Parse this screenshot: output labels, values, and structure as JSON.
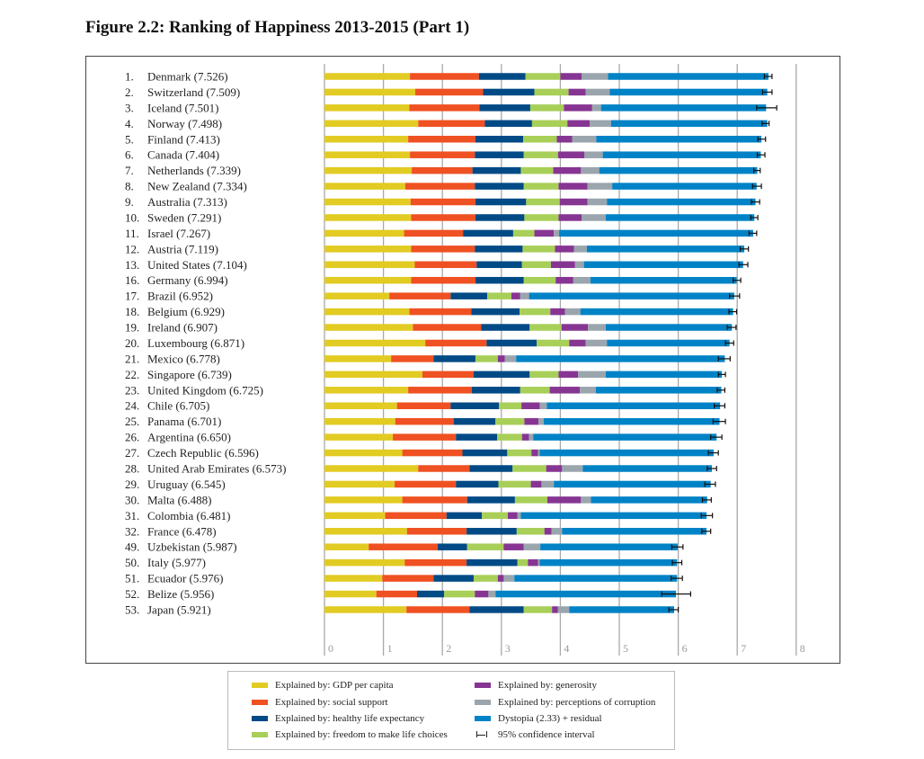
{
  "title": "Figure 2.2: Ranking of Happiness 2013-2015 (Part 1)",
  "chart_data": {
    "type": "bar",
    "orientation": "horizontal",
    "stacked": true,
    "title": "Figure 2.2: Ranking of Happiness 2013-2015 (Part 1)",
    "xlim": [
      0,
      8
    ],
    "xticks": [
      "0",
      "1",
      "2",
      "3",
      "4",
      "5",
      "6",
      "7",
      "8"
    ],
    "grid": true,
    "legend_position": "bottom",
    "series": [
      {
        "name": "Explained by: GDP per capita",
        "color": "#e2cb22"
      },
      {
        "name": "Explained by: social support",
        "color": "#ef5122"
      },
      {
        "name": "Explained by: healthy life expectancy",
        "color": "#004a86"
      },
      {
        "name": "Explained by: freedom to make life choices",
        "color": "#a8cf58"
      },
      {
        "name": "Explained by: generosity",
        "color": "#873593"
      },
      {
        "name": "Explained by: perceptions of corruption",
        "color": "#9ba5ad"
      },
      {
        "name": "Dystopia (2.33) + residual",
        "color": "#0083c6"
      }
    ],
    "ci_label": "95% confidence interval",
    "rows": [
      {
        "rank": "1.",
        "country": "Denmark",
        "score": "7.526",
        "values": [
          1.45,
          1.17,
          0.79,
          0.59,
          0.36,
          0.45,
          2.72
        ],
        "ci": [
          7.46,
          7.59
        ]
      },
      {
        "rank": "2.",
        "country": "Switzerland",
        "score": "7.509",
        "values": [
          1.54,
          1.15,
          0.87,
          0.58,
          0.29,
          0.41,
          2.67
        ],
        "ci": [
          7.43,
          7.59
        ]
      },
      {
        "rank": "3.",
        "country": "Iceland",
        "score": "7.501",
        "values": [
          1.44,
          1.19,
          0.86,
          0.57,
          0.48,
          0.15,
          2.8
        ],
        "ci": [
          7.33,
          7.67
        ]
      },
      {
        "rank": "4.",
        "country": "Norway",
        "score": "7.498",
        "values": [
          1.59,
          1.13,
          0.8,
          0.6,
          0.38,
          0.36,
          2.65
        ],
        "ci": [
          7.42,
          7.54
        ]
      },
      {
        "rank": "5.",
        "country": "Finland",
        "score": "7.413",
        "values": [
          1.42,
          1.14,
          0.81,
          0.57,
          0.26,
          0.41,
          2.8
        ],
        "ci": [
          7.35,
          7.48
        ]
      },
      {
        "rank": "6.",
        "country": "Canada",
        "score": "7.404",
        "values": [
          1.45,
          1.1,
          0.83,
          0.58,
          0.45,
          0.31,
          2.68
        ],
        "ci": [
          7.34,
          7.47
        ]
      },
      {
        "rank": "7.",
        "country": "Netherlands",
        "score": "7.339",
        "values": [
          1.48,
          1.03,
          0.82,
          0.55,
          0.47,
          0.31,
          2.68
        ],
        "ci": [
          7.28,
          7.39
        ]
      },
      {
        "rank": "8.",
        "country": "New Zealand",
        "score": "7.334",
        "values": [
          1.37,
          1.18,
          0.83,
          0.59,
          0.49,
          0.42,
          2.45
        ],
        "ci": [
          7.26,
          7.41
        ]
      },
      {
        "rank": "9.",
        "country": "Australia",
        "score": "7.313",
        "values": [
          1.46,
          1.1,
          0.86,
          0.57,
          0.47,
          0.33,
          2.52
        ],
        "ci": [
          7.24,
          7.38
        ]
      },
      {
        "rank": "10.",
        "country": "Sweden",
        "score": "7.291",
        "values": [
          1.47,
          1.09,
          0.83,
          0.58,
          0.39,
          0.41,
          2.52
        ],
        "ci": [
          7.23,
          7.35
        ]
      },
      {
        "rank": "11.",
        "country": "Israel",
        "score": "7.267",
        "values": [
          1.35,
          1.0,
          0.85,
          0.36,
          0.33,
          0.09,
          3.29
        ],
        "ci": [
          7.2,
          7.33
        ]
      },
      {
        "rank": "12.",
        "country": "Austria",
        "score": "7.119",
        "values": [
          1.47,
          1.08,
          0.81,
          0.55,
          0.32,
          0.22,
          2.67
        ],
        "ci": [
          7.05,
          7.19
        ]
      },
      {
        "rank": "13.",
        "country": "United States",
        "score": "7.104",
        "values": [
          1.53,
          1.05,
          0.77,
          0.49,
          0.41,
          0.15,
          2.7
        ],
        "ci": [
          7.03,
          7.18
        ]
      },
      {
        "rank": "16.",
        "country": "Germany",
        "score": "6.994",
        "values": [
          1.47,
          1.09,
          0.82,
          0.54,
          0.3,
          0.29,
          2.48
        ],
        "ci": [
          6.93,
          7.06
        ]
      },
      {
        "rank": "17.",
        "country": "Brazil",
        "score": "6.952",
        "values": [
          1.1,
          1.04,
          0.62,
          0.41,
          0.15,
          0.15,
          3.48
        ],
        "ci": [
          6.87,
          7.04
        ]
      },
      {
        "rank": "18.",
        "country": "Belgium",
        "score": "6.929",
        "values": [
          1.44,
          1.05,
          0.82,
          0.52,
          0.25,
          0.26,
          2.59
        ],
        "ci": [
          6.86,
          6.99
        ]
      },
      {
        "rank": "19.",
        "country": "Ireland",
        "score": "6.907",
        "values": [
          1.5,
          1.16,
          0.82,
          0.54,
          0.45,
          0.3,
          2.14
        ],
        "ci": [
          6.83,
          6.98
        ]
      },
      {
        "rank": "20.",
        "country": "Luxembourg",
        "score": "6.871",
        "values": [
          1.71,
          1.04,
          0.85,
          0.55,
          0.28,
          0.36,
          2.08
        ],
        "ci": [
          6.8,
          6.94
        ]
      },
      {
        "rank": "21.",
        "country": "Mexico",
        "score": "6.778",
        "values": [
          1.13,
          0.72,
          0.71,
          0.38,
          0.12,
          0.19,
          3.54
        ],
        "ci": [
          6.68,
          6.88
        ]
      },
      {
        "rank": "22.",
        "country": "Singapore",
        "score": "6.739",
        "values": [
          1.66,
          0.87,
          0.95,
          0.49,
          0.33,
          0.47,
          1.97
        ],
        "ci": [
          6.68,
          6.8
        ]
      },
      {
        "rank": "23.",
        "country": "United Kingdom",
        "score": "6.725",
        "values": [
          1.42,
          1.08,
          0.82,
          0.5,
          0.51,
          0.27,
          2.13
        ],
        "ci": [
          6.66,
          6.79
        ]
      },
      {
        "rank": "24.",
        "country": "Chile",
        "score": "6.705",
        "values": [
          1.23,
          0.91,
          0.82,
          0.38,
          0.31,
          0.12,
          2.94
        ],
        "ci": [
          6.61,
          6.79
        ]
      },
      {
        "rank": "25.",
        "country": "Panama",
        "score": "6.701",
        "values": [
          1.2,
          0.99,
          0.71,
          0.49,
          0.24,
          0.09,
          2.98
        ],
        "ci": [
          6.59,
          6.8
        ]
      },
      {
        "rank": "26.",
        "country": "Argentina",
        "score": "6.650",
        "values": [
          1.16,
          1.07,
          0.7,
          0.42,
          0.12,
          0.07,
          3.11
        ],
        "ci": [
          6.55,
          6.74
        ]
      },
      {
        "rank": "27.",
        "country": "Czech Republic",
        "score": "6.596",
        "values": [
          1.32,
          1.02,
          0.76,
          0.41,
          0.11,
          0.03,
          2.95
        ],
        "ci": [
          6.51,
          6.68
        ]
      },
      {
        "rank": "28.",
        "country": "United Arab Emirates",
        "score": "6.573",
        "values": [
          1.59,
          0.87,
          0.73,
          0.57,
          0.27,
          0.35,
          2.19
        ],
        "ci": [
          6.49,
          6.65
        ]
      },
      {
        "rank": "29.",
        "country": "Uruguay",
        "score": "6.545",
        "values": [
          1.19,
          1.04,
          0.72,
          0.55,
          0.18,
          0.21,
          2.66
        ],
        "ci": [
          6.45,
          6.63
        ]
      },
      {
        "rank": "30.",
        "country": "Malta",
        "score": "6.488",
        "values": [
          1.32,
          1.1,
          0.81,
          0.55,
          0.57,
          0.17,
          1.97
        ],
        "ci": [
          6.41,
          6.56
        ]
      },
      {
        "rank": "31.",
        "country": "Colombia",
        "score": "6.481",
        "values": [
          1.03,
          1.04,
          0.6,
          0.44,
          0.16,
          0.06,
          3.15
        ],
        "ci": [
          6.39,
          6.58
        ]
      },
      {
        "rank": "32.",
        "country": "France",
        "score": "6.478",
        "values": [
          1.4,
          1.01,
          0.85,
          0.47,
          0.12,
          0.18,
          2.45
        ],
        "ci": [
          6.4,
          6.55
        ]
      },
      {
        "rank": "49.",
        "country": "Uzbekistan",
        "score": "5.987",
        "values": [
          0.75,
          1.17,
          0.5,
          0.62,
          0.34,
          0.28,
          2.33
        ],
        "ci": [
          5.89,
          6.08
        ]
      },
      {
        "rank": "50.",
        "country": "Italy",
        "score": "5.977",
        "values": [
          1.36,
          1.05,
          0.86,
          0.18,
          0.17,
          0.03,
          2.33
        ],
        "ci": [
          5.9,
          6.06
        ]
      },
      {
        "rank": "51.",
        "country": "Ecuador",
        "score": "5.976",
        "values": [
          0.98,
          0.87,
          0.68,
          0.41,
          0.1,
          0.18,
          2.76
        ],
        "ci": [
          5.88,
          6.07
        ]
      },
      {
        "rank": "52.",
        "country": "Belize",
        "score": "5.956",
        "values": [
          0.88,
          0.69,
          0.46,
          0.52,
          0.23,
          0.12,
          3.06
        ],
        "ci": [
          5.72,
          6.21
        ]
      },
      {
        "rank": "53.",
        "country": "Japan",
        "score": "5.921",
        "values": [
          1.39,
          1.07,
          0.92,
          0.48,
          0.1,
          0.19,
          1.78
        ],
        "ci": [
          5.84,
          6.0
        ]
      }
    ]
  }
}
